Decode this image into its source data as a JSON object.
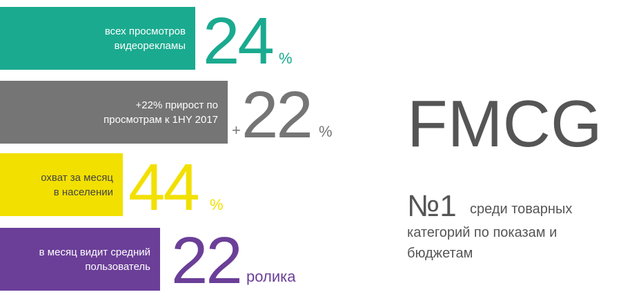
{
  "items": [
    {
      "lines": [
        "всех просмотров",
        "видеорекламы"
      ],
      "number": "24",
      "unit": "%"
    },
    {
      "lines": [
        "+22% прирост по",
        "просмотрам к 1HY 2017"
      ],
      "prefix": "+",
      "number": "22",
      "unit": "%"
    },
    {
      "lines": [
        "охват за месяц",
        "в населении"
      ],
      "number": "44",
      "unit": "%"
    },
    {
      "lines": [
        "в месяц видит средний",
        "пользователь"
      ],
      "number": "22",
      "unit": "ролика"
    }
  ],
  "side": {
    "title": "FMCG",
    "rank": "№1",
    "lines": [
      "среди товарных",
      "категорий по показам и",
      "бюджетам"
    ]
  }
}
